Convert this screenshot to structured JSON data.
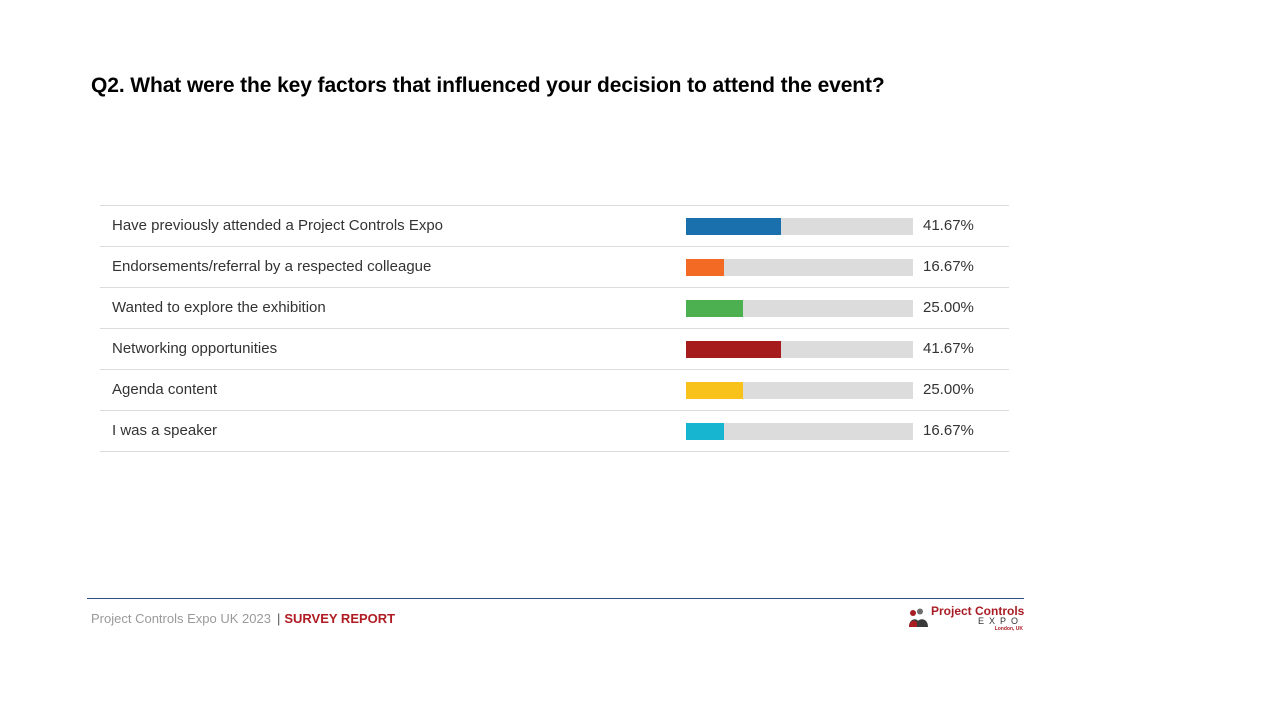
{
  "page": {
    "title": "Q2. What were the key factors that influenced your decision to attend the event?"
  },
  "chart_data": {
    "type": "bar",
    "orientation": "horizontal",
    "xlim": [
      0,
      100
    ],
    "grid": false,
    "categories": [
      "Have previously attended a Project Controls Expo",
      "Endorsements/referral by a respected colleague",
      "Wanted to explore the exhibition",
      "Networking opportunities",
      "Agenda content",
      "I was a speaker"
    ],
    "values": [
      41.67,
      16.67,
      25.0,
      41.67,
      25.0,
      16.67
    ],
    "value_labels": [
      "41.67%",
      "16.67%",
      "25.00%",
      "41.67%",
      "25.00%",
      "16.67%"
    ],
    "colors": [
      "#1a6fad",
      "#f26a24",
      "#4caf50",
      "#a61c1c",
      "#f9c21a",
      "#17b5cf"
    ],
    "track_color": "#dcdcdc"
  },
  "footer": {
    "event": "Project Controls Expo UK 2023",
    "separator": "|",
    "report": "SURVEY REPORT"
  },
  "logo": {
    "name": "Project Controls",
    "sub": "EXPO",
    "location": "London, UK",
    "icon": "people-icon"
  }
}
